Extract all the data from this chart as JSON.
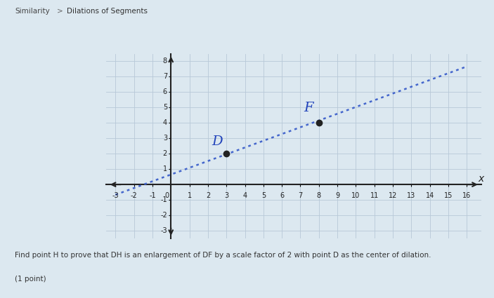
{
  "point_D": [
    3,
    2
  ],
  "point_F": [
    8,
    4
  ],
  "xlim": [
    -3.5,
    16.8
  ],
  "ylim": [
    -3.5,
    8.5
  ],
  "x_ticks": [
    -3,
    -2,
    -1,
    0,
    1,
    2,
    3,
    4,
    5,
    6,
    7,
    8,
    9,
    10,
    11,
    12,
    13,
    14,
    15,
    16
  ],
  "y_ticks": [
    -3,
    -2,
    -1,
    0,
    1,
    2,
    3,
    4,
    5,
    6,
    7,
    8
  ],
  "line_color": "#4466cc",
  "line_start_x": -3,
  "line_start_y": -0.6667,
  "line_end_x": 16,
  "line_end_y": 7.6667,
  "dot_color": "#222222",
  "label_color": "#2244bb",
  "grid_color": "#b8c8d8",
  "axis_color": "#222222",
  "bg_color": "#dce8f0",
  "header_bg": "#dce8f0",
  "footer_bg": "#dce8f0",
  "header_text1": "Similarity",
  "header_sep": ">",
  "header_text2": "Dilations of Segments",
  "footer_line1": "Find point H to prove that DH is an enlargement of DF by a scale factor of 2 with point D as the center of dilation.",
  "footer_line2": "(1 point)"
}
